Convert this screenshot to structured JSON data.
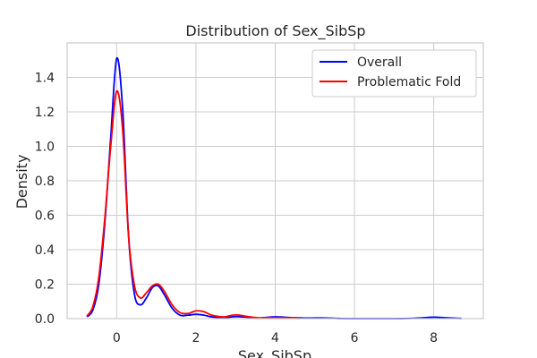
{
  "chart_data": {
    "type": "line",
    "title": "Distribution of Sex_SibSp",
    "xlabel": "Sex_SibSp",
    "ylabel": "Density",
    "xlim": [
      -1.25,
      9.25
    ],
    "ylim": [
      0,
      1.6
    ],
    "xticks": [
      0,
      2,
      4,
      6,
      8
    ],
    "yticks": [
      0.0,
      0.2,
      0.4,
      0.6,
      0.8,
      1.0,
      1.2,
      1.4
    ],
    "grid": true,
    "legend_position": "top-right",
    "series": [
      {
        "name": "Overall",
        "color": "#0000ff",
        "x": [
          -0.75,
          -0.6,
          -0.45,
          -0.3,
          -0.15,
          0.0,
          0.15,
          0.3,
          0.45,
          0.6,
          0.75,
          0.9,
          1.05,
          1.2,
          1.4,
          1.6,
          1.8,
          2.0,
          2.2,
          2.4,
          2.7,
          3.0,
          3.3,
          3.6,
          4.0,
          4.4,
          4.8,
          5.2,
          5.6,
          6.0,
          6.5,
          7.0,
          7.5,
          8.0,
          8.3,
          8.7
        ],
        "y": [
          0.01,
          0.05,
          0.2,
          0.55,
          1.05,
          1.51,
          1.22,
          0.48,
          0.14,
          0.08,
          0.12,
          0.18,
          0.19,
          0.14,
          0.06,
          0.02,
          0.02,
          0.025,
          0.02,
          0.01,
          0.005,
          0.012,
          0.008,
          0.004,
          0.01,
          0.006,
          0.003,
          0.004,
          0.001,
          0.0,
          0.0,
          0.0,
          0.002,
          0.008,
          0.005,
          0.001
        ]
      },
      {
        "name": "Problematic Fold",
        "color": "#ff0000",
        "x": [
          -0.75,
          -0.6,
          -0.45,
          -0.3,
          -0.15,
          0.0,
          0.15,
          0.3,
          0.45,
          0.6,
          0.75,
          0.9,
          1.05,
          1.2,
          1.4,
          1.6,
          1.8,
          2.0,
          2.2,
          2.4,
          2.7,
          3.0,
          3.3,
          3.6,
          4.0,
          4.4,
          4.6
        ],
        "y": [
          0.015,
          0.07,
          0.24,
          0.58,
          1.0,
          1.32,
          1.1,
          0.48,
          0.19,
          0.12,
          0.15,
          0.19,
          0.2,
          0.16,
          0.08,
          0.035,
          0.03,
          0.045,
          0.04,
          0.02,
          0.01,
          0.022,
          0.012,
          0.004,
          0.006,
          0.003,
          0.001
        ]
      }
    ]
  }
}
